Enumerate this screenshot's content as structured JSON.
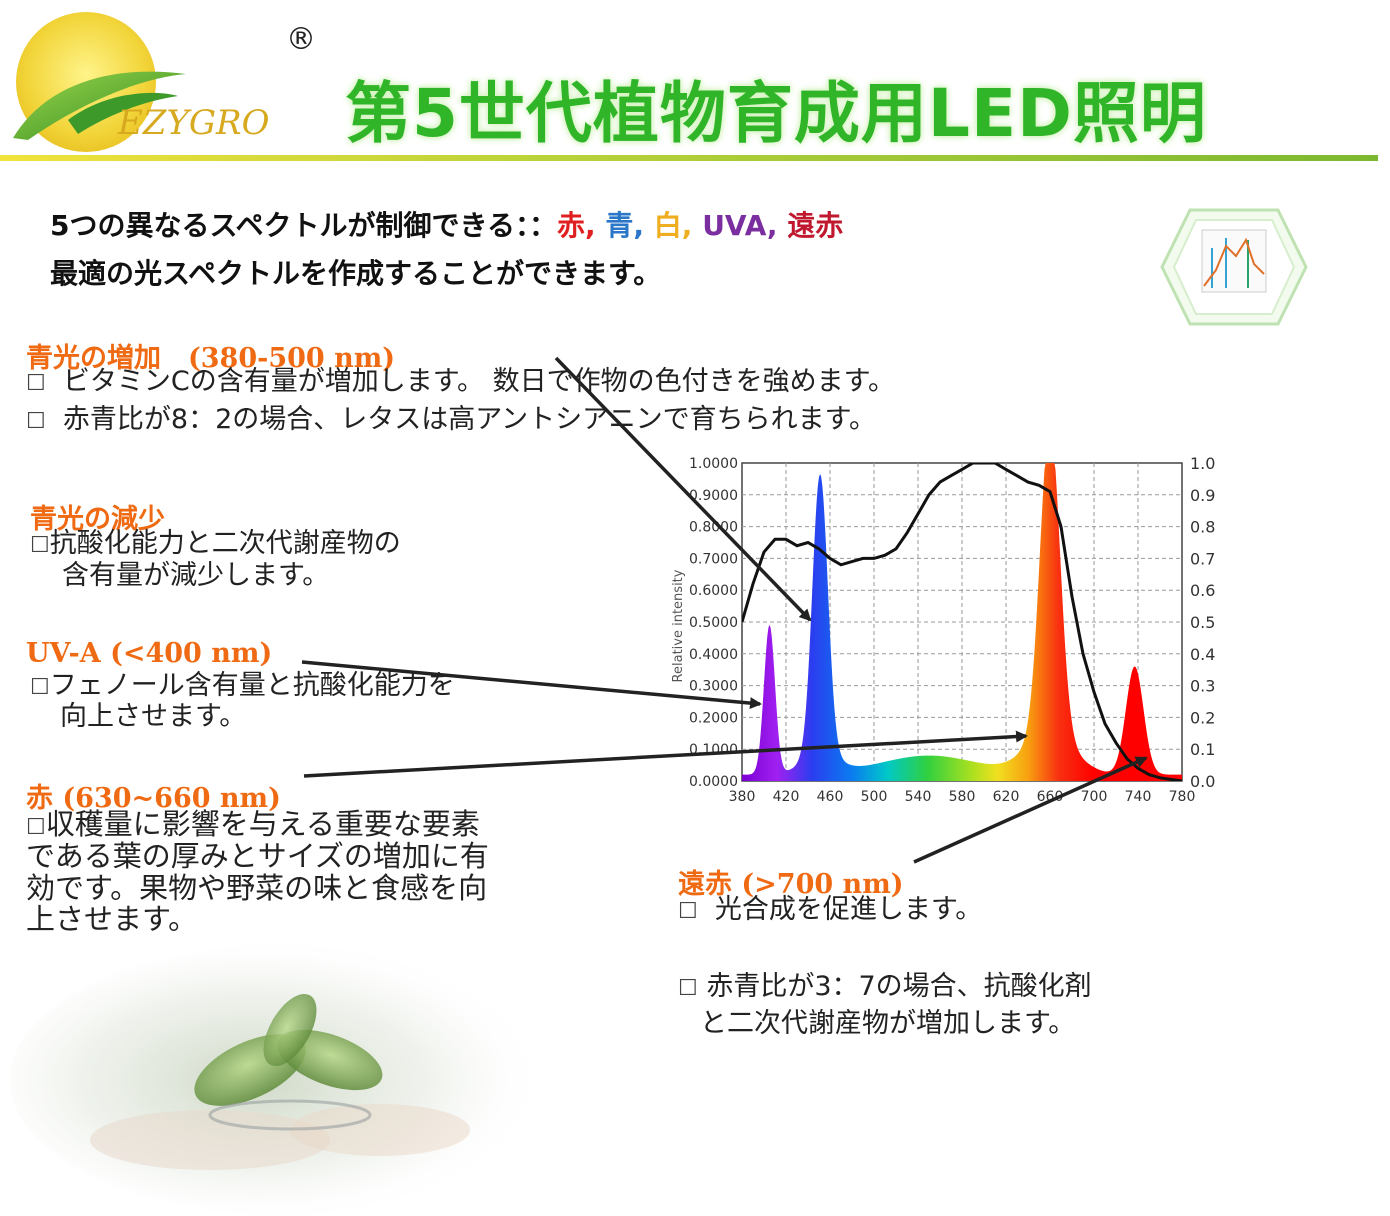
{
  "brand": {
    "name": "EZYGRO",
    "registered_mark": "®"
  },
  "header": {
    "title": "第5世代植物育成用LED照明"
  },
  "intro": {
    "line1_prefix": "5つの異なるスペクトルが制御できる：：",
    "spectra": [
      {
        "label": "赤",
        "color": "#e02020"
      },
      {
        "label": "青",
        "color": "#2a76c8"
      },
      {
        "label": "白",
        "color": "#efae1f"
      },
      {
        "label": "UVA",
        "color": "#7a2ea0"
      },
      {
        "label": "遠赤",
        "color": "#c0182f"
      }
    ],
    "sep": ", ",
    "line2": "最適の光スペクトルを作成することができます。"
  },
  "sections": {
    "blue_increase": {
      "title": "青光の増加　(380-500 nm)",
      "lines": [
        "ビタミンCの含有量が増加します。 数日で作物の色付きを強めます。",
        "赤青比が8：2の場合、レタスは高アントシアニンで育ちられます。"
      ]
    },
    "blue_decrease": {
      "title": "青光の減少",
      "lines": [
        "抗酸化能力と二次代謝産物の",
        "含有量が減少します。"
      ]
    },
    "uva": {
      "title": "UV-A (<400 nm)",
      "lines": [
        "フェノール含有量と抗酸化能力を",
        "向上させます。"
      ]
    },
    "red": {
      "title": "赤 (630~660 nm)",
      "lines": [
        "収穫量に影響を与える重要な要素",
        "である葉の厚みとサイズの増加に有",
        "効です。果物や野菜の味と食感を向",
        "上させます。"
      ]
    },
    "far_red": {
      "title": "遠赤 (>700 nm)",
      "lines": [
        "光合成を促進します。",
        "赤青比が3：7の場合、抗酸化剤",
        "と二次代謝産物が増加します。"
      ]
    }
  },
  "chart": {
    "ylabel": "Relative intensity",
    "x_ticks": [
      "380",
      "420",
      "460",
      "500",
      "540",
      "580",
      "620",
      "660",
      "700",
      "740",
      "780"
    ],
    "y_left_ticks": [
      "1.0000",
      "0.9000",
      "0.8000",
      "0.7000",
      "0.6000",
      "0.5000",
      "0.4000",
      "0.3000",
      "0.2000",
      "0.1000",
      "0.0000"
    ],
    "y_right_ticks": [
      "1.0",
      "0.9",
      "0.8",
      "0.7",
      "0.6",
      "0.5",
      "0.4",
      "0.3",
      "0.2",
      "0.1",
      "0.0"
    ]
  },
  "colors": {
    "title_green": "#2fb527",
    "heading_orange": "#ef6a12"
  }
}
